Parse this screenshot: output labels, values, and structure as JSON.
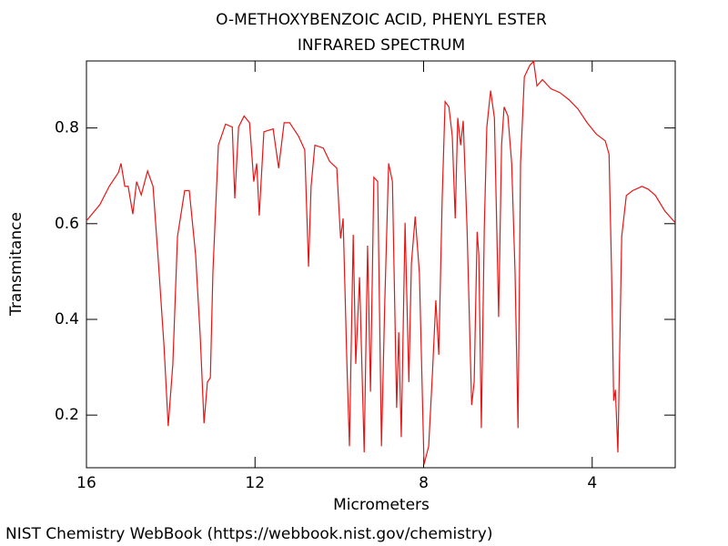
{
  "chart_data": {
    "type": "line",
    "title": "O-METHOXYBENZOIC ACID, PHENYL ESTER",
    "subtitle": "INFRARED SPECTRUM",
    "x_label": "Micrometers",
    "y_label": "Transmitance",
    "footer": "NIST Chemistry WebBook (https://webbook.nist.gov/chemistry)",
    "color": "#e81515",
    "xlim": [
      16,
      2.03
    ],
    "ylim": [
      0.09,
      0.94
    ],
    "xticks": [
      16,
      12,
      8,
      4
    ],
    "yticks": [
      0.2,
      0.4,
      0.6,
      0.8
    ],
    "x": [
      16.0,
      15.68,
      15.46,
      15.24,
      15.18,
      15.09,
      15.01,
      14.9,
      14.81,
      14.7,
      14.55,
      14.42,
      14.29,
      14.16,
      14.06,
      13.95,
      13.84,
      13.67,
      13.56,
      13.41,
      13.3,
      13.21,
      13.13,
      13.06,
      13.0,
      12.87,
      12.7,
      12.54,
      12.48,
      12.39,
      12.26,
      12.13,
      12.03,
      11.96,
      11.9,
      11.79,
      11.57,
      11.44,
      11.31,
      11.18,
      10.97,
      10.82,
      10.73,
      10.67,
      10.58,
      10.38,
      10.23,
      10.06,
      9.97,
      9.91,
      9.82,
      9.76,
      9.67,
      9.61,
      9.52,
      9.41,
      9.33,
      9.26,
      9.18,
      9.09,
      9.0,
      8.92,
      8.83,
      8.74,
      8.64,
      8.59,
      8.53,
      8.44,
      8.35,
      8.29,
      8.2,
      8.1,
      7.99,
      7.88,
      7.79,
      7.71,
      7.64,
      7.56,
      7.49,
      7.4,
      7.32,
      7.25,
      7.19,
      7.12,
      7.06,
      6.97,
      6.86,
      6.8,
      6.73,
      6.69,
      6.63,
      6.56,
      6.5,
      6.41,
      6.32,
      6.26,
      6.22,
      6.15,
      6.09,
      6.0,
      5.91,
      5.83,
      5.76,
      5.7,
      5.61,
      5.48,
      5.39,
      5.31,
      5.18,
      4.98,
      4.77,
      4.55,
      4.34,
      4.12,
      3.9,
      3.69,
      3.6,
      3.54,
      3.49,
      3.45,
      3.39,
      3.3,
      3.19,
      3.04,
      2.82,
      2.67,
      2.5,
      2.28,
      2.03
    ],
    "values": [
      0.606,
      0.64,
      0.678,
      0.707,
      0.726,
      0.678,
      0.678,
      0.62,
      0.688,
      0.66,
      0.71,
      0.678,
      0.516,
      0.345,
      0.177,
      0.307,
      0.573,
      0.669,
      0.669,
      0.535,
      0.364,
      0.183,
      0.269,
      0.278,
      0.497,
      0.764,
      0.808,
      0.802,
      0.653,
      0.802,
      0.825,
      0.811,
      0.688,
      0.726,
      0.617,
      0.792,
      0.798,
      0.716,
      0.811,
      0.811,
      0.783,
      0.754,
      0.51,
      0.678,
      0.764,
      0.758,
      0.73,
      0.716,
      0.569,
      0.611,
      0.307,
      0.135,
      0.577,
      0.307,
      0.488,
      0.122,
      0.554,
      0.249,
      0.697,
      0.688,
      0.135,
      0.44,
      0.726,
      0.688,
      0.215,
      0.373,
      0.154,
      0.602,
      0.269,
      0.516,
      0.615,
      0.497,
      0.097,
      0.135,
      0.288,
      0.44,
      0.326,
      0.65,
      0.855,
      0.844,
      0.783,
      0.611,
      0.821,
      0.764,
      0.815,
      0.592,
      0.221,
      0.269,
      0.583,
      0.535,
      0.173,
      0.592,
      0.802,
      0.878,
      0.821,
      0.573,
      0.405,
      0.764,
      0.844,
      0.825,
      0.726,
      0.497,
      0.173,
      0.726,
      0.907,
      0.931,
      0.939,
      0.888,
      0.901,
      0.882,
      0.874,
      0.859,
      0.84,
      0.811,
      0.787,
      0.773,
      0.745,
      0.497,
      0.23,
      0.253,
      0.122,
      0.573,
      0.659,
      0.669,
      0.678,
      0.672,
      0.659,
      0.627,
      0.602
    ]
  }
}
